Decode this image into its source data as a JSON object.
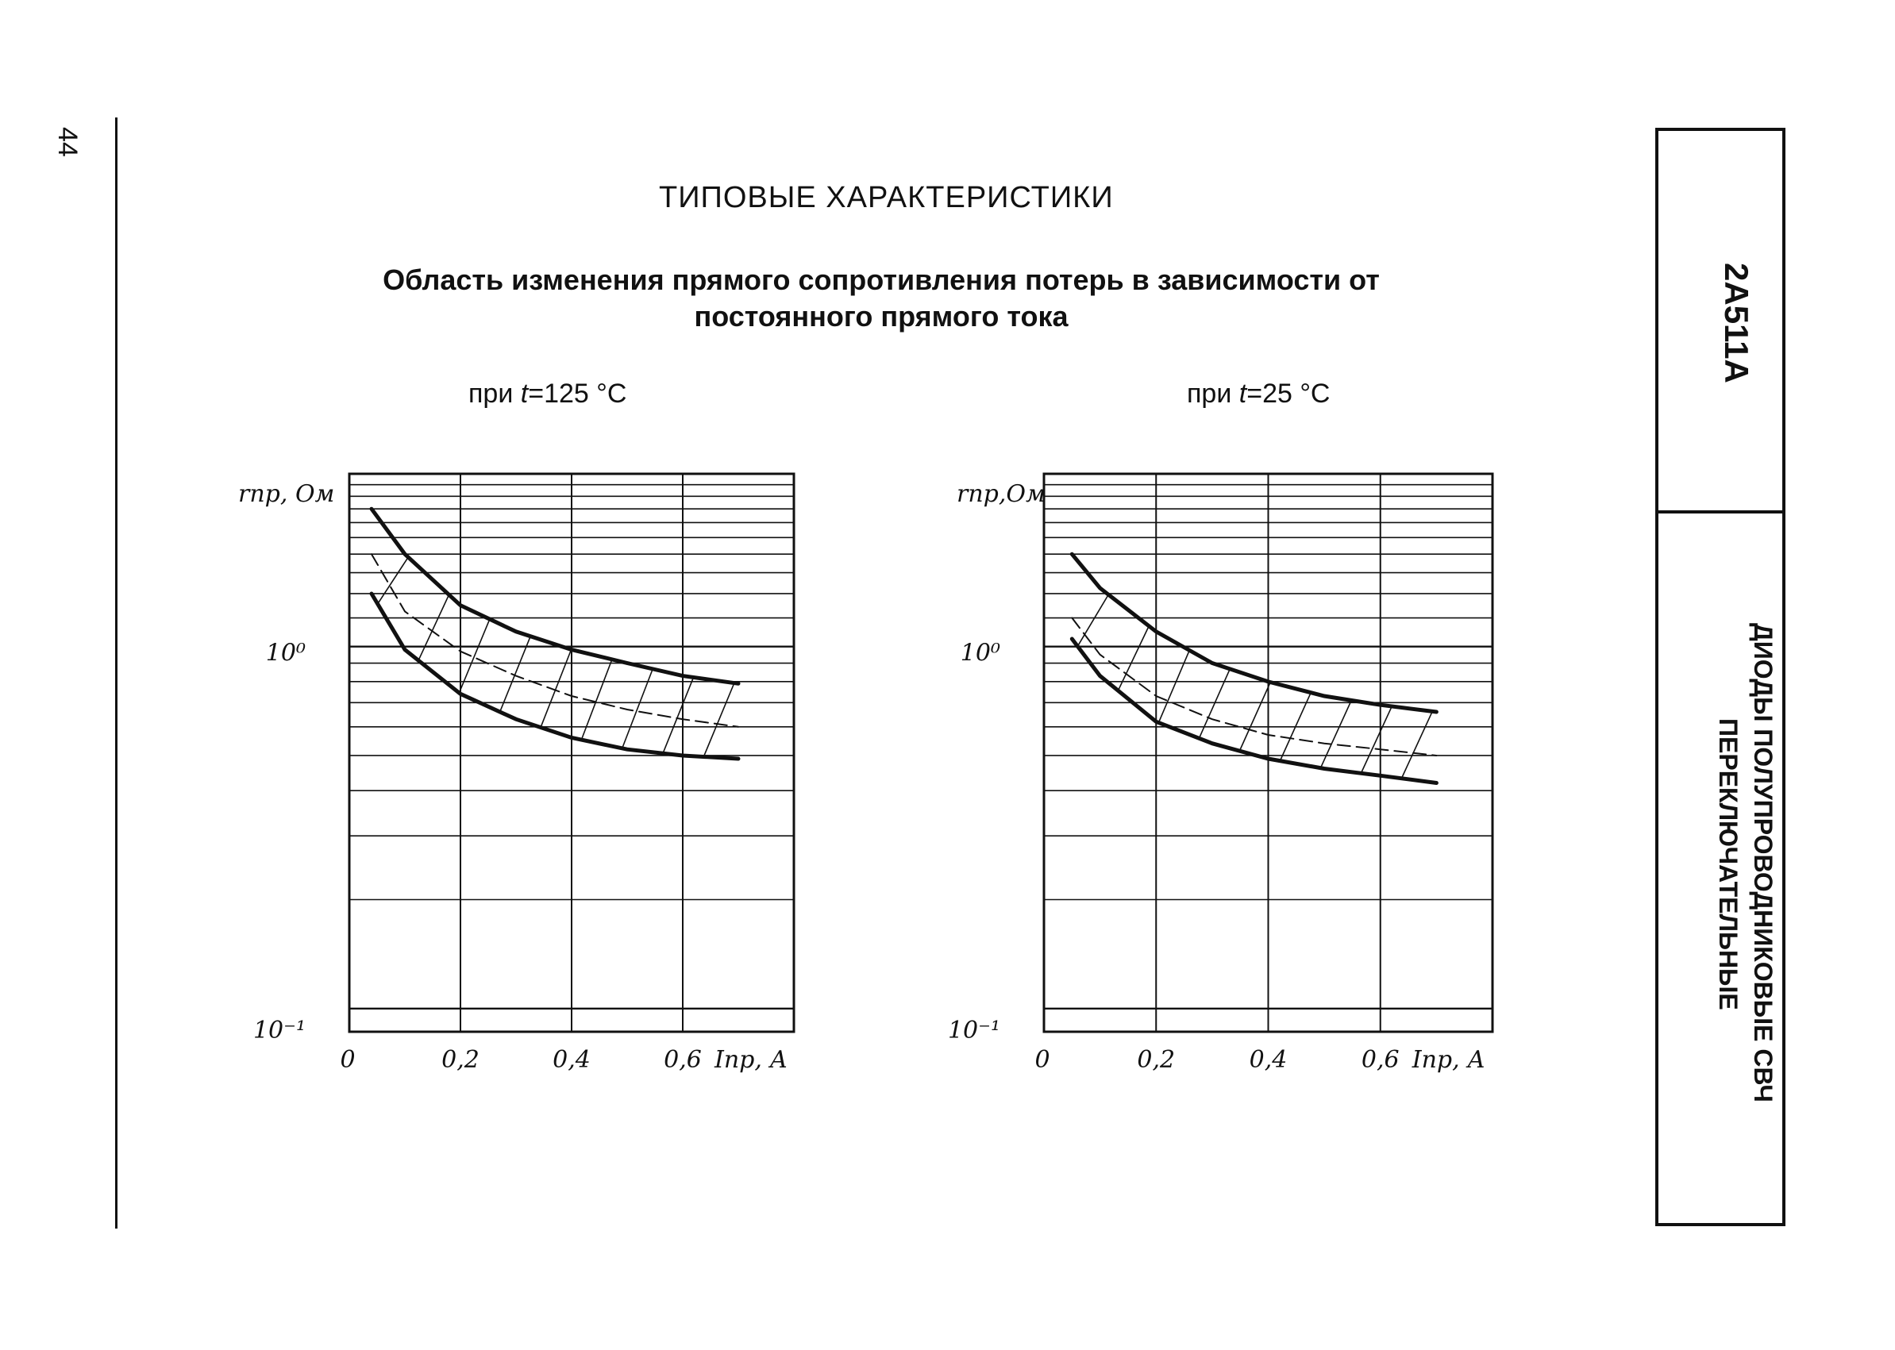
{
  "page_number": "44",
  "page_heading": "ТИПОВЫЕ ХАРАКТЕРИСТИКИ",
  "chart_caption": "Область изменения прямого сопротивления потерь в зависимости от постоянного прямого тока",
  "side": {
    "model": "2А511А",
    "series_line1": "ДИОДЫ ПОЛУПРОВОДНИКОВЫЕ СВЧ",
    "series_line2": "ПЕРЕКЛЮЧАТЕЛЬНЫЕ"
  },
  "chart_data": [
    {
      "type": "line",
      "condition_prefix": "при",
      "condition_var": "t",
      "condition_value": "=125 °C",
      "ylabel": "rпр, Ом",
      "xlabel": "Iпр, А",
      "y_scale": "log",
      "ylim": [
        0.1,
        3.0
      ],
      "xlim": [
        0,
        0.8
      ],
      "grid": true,
      "x_ticks": [
        "0",
        "0,2",
        "0,4",
        "0,6"
      ],
      "y_ticks": [
        "10⁰",
        "10⁻¹"
      ],
      "x": [
        0.04,
        0.1,
        0.2,
        0.3,
        0.4,
        0.5,
        0.6,
        0.7
      ],
      "series": [
        {
          "style": "solid-thick",
          "values": [
            2.4,
            1.8,
            1.3,
            1.1,
            0.98,
            0.9,
            0.83,
            0.79
          ]
        },
        {
          "style": "dashed",
          "values": [
            1.8,
            1.25,
            0.97,
            0.83,
            0.73,
            0.67,
            0.63,
            0.6
          ]
        },
        {
          "style": "solid-thick",
          "values": [
            1.4,
            0.98,
            0.74,
            0.63,
            0.56,
            0.52,
            0.5,
            0.49
          ]
        }
      ],
      "hatched_region": "between upper and lower curves"
    },
    {
      "type": "line",
      "condition_prefix": "при",
      "condition_var": "t",
      "condition_value": "=25 °C",
      "ylabel": "rпр,Ом",
      "xlabel": "Iпр, А",
      "y_scale": "log",
      "ylim": [
        0.1,
        3.0
      ],
      "xlim": [
        0,
        0.8
      ],
      "grid": true,
      "x_ticks": [
        "0",
        "0,2",
        "0,4",
        "0,6"
      ],
      "y_ticks": [
        "10⁰",
        "10⁻¹"
      ],
      "x": [
        0.05,
        0.1,
        0.2,
        0.3,
        0.4,
        0.5,
        0.6,
        0.7
      ],
      "series": [
        {
          "style": "solid-thick",
          "values": [
            1.8,
            1.45,
            1.1,
            0.9,
            0.8,
            0.73,
            0.69,
            0.66
          ]
        },
        {
          "style": "dashed",
          "values": [
            1.2,
            0.95,
            0.73,
            0.63,
            0.57,
            0.54,
            0.52,
            0.5
          ]
        },
        {
          "style": "solid-thick",
          "values": [
            1.05,
            0.83,
            0.62,
            0.54,
            0.49,
            0.46,
            0.44,
            0.42
          ]
        }
      ],
      "hatched_region": "between upper and lower curves"
    }
  ]
}
